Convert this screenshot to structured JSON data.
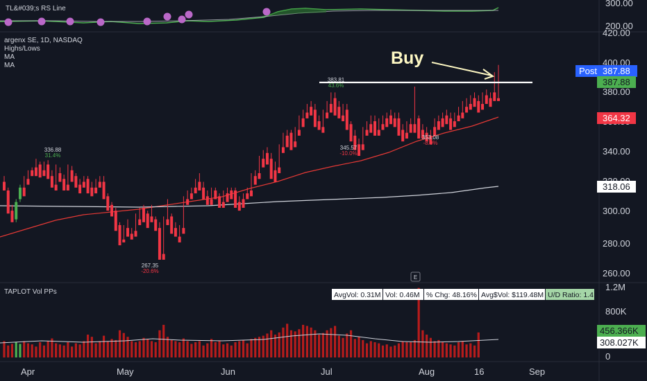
{
  "legend": {
    "rs_line": "TL&#039;s RS Line",
    "symbol": "argenx SE, 1D, NASDAQ",
    "highs_lows": "Highs/Lows",
    "ma1": "MA",
    "ma2": "MA",
    "vol": "TAPLOT Vol PPs"
  },
  "annotation": {
    "buy": "Buy"
  },
  "price_axis": {
    "ticks": [
      "420.00",
      "400.00",
      "380.00",
      "360.00",
      "340.00",
      "320.00",
      "300.00",
      "280.00",
      "260.00"
    ]
  },
  "rs_axis": {
    "ticks": [
      "300.00",
      "200.00"
    ]
  },
  "vol_axis": {
    "ticks": [
      "1.2M",
      "800K",
      "400K",
      "0"
    ]
  },
  "time_axis": {
    "ticks": [
      "Apr",
      "May",
      "Jun",
      "Jul",
      "Aug",
      "16",
      "Sep"
    ]
  },
  "badges": {
    "post_label": "Post",
    "post_value": "387.88",
    "last_value": "387.88",
    "ma_fast": "364.32",
    "ma_slow": "318.06",
    "vol_last": "456.366K",
    "vol_avg": "308.027K"
  },
  "markers": {
    "high1_value": "336.88",
    "high1_pct": "31.4%",
    "low1_value": "267.35",
    "low1_pct": "-20.6%",
    "high2_value": "383.81",
    "high2_pct": "43.6%",
    "low2_value": "345.57",
    "low2_pct": "-10.0%",
    "low3_value": "353.08",
    "low3_pct": "-8.0%",
    "e_badge": "E"
  },
  "stats": {
    "avgvol": "AvgVol: 0.31M",
    "vol": "Vol: 0.46M",
    "chg": "% Chg: 48.16%",
    "avgdollar": "Avg$Vol: $119.48M",
    "ud": "U/D Ratio: 1.4"
  },
  "colors": {
    "up": "#4caf50",
    "down": "#f23645",
    "ma_fast": "#e53935",
    "ma_slow": "#d1d4dc",
    "accent": "#2962ff"
  },
  "chart_data": {
    "type": "candlestick",
    "symbol": "argenx SE",
    "interval": "1D",
    "exchange": "NASDAQ",
    "ylim": [
      255,
      425
    ],
    "x_ticks": [
      "Apr",
      "May",
      "Jun",
      "Jul",
      "Aug",
      "16",
      "Sep"
    ],
    "candles": [
      [
        322,
        326,
        318,
        316
      ],
      [
        316,
        318,
        302,
        300
      ],
      [
        302,
        306,
        296,
        294
      ],
      [
        296,
        310,
        294,
        308
      ],
      [
        310,
        320,
        308,
        318
      ],
      [
        318,
        326,
        314,
        312
      ],
      [
        324,
        330,
        322,
        320
      ],
      [
        330,
        332,
        328,
        326
      ],
      [
        332,
        338,
        330,
        326
      ],
      [
        334,
        336,
        328,
        325
      ],
      [
        330,
        336,
        328,
        326
      ],
      [
        334,
        337,
        326,
        324
      ],
      [
        326,
        330,
        320,
        318
      ],
      [
        320,
        334,
        318,
        316
      ],
      [
        328,
        332,
        324,
        322
      ],
      [
        324,
        327,
        318,
        316
      ],
      [
        320,
        334,
        318,
        316
      ],
      [
        330,
        333,
        324,
        322
      ],
      [
        326,
        328,
        320,
        318
      ],
      [
        320,
        324,
        318,
        314
      ],
      [
        322,
        326,
        320,
        318
      ],
      [
        324,
        326,
        316,
        314
      ],
      [
        318,
        322,
        314,
        312
      ],
      [
        318,
        324,
        316,
        314
      ],
      [
        322,
        326,
        320,
        318
      ],
      [
        322,
        326,
        312,
        310
      ],
      [
        312,
        314,
        304,
        302
      ],
      [
        306,
        308,
        300,
        298
      ],
      [
        302,
        304,
        290,
        288
      ],
      [
        292,
        294,
        280,
        278
      ],
      [
        282,
        292,
        281,
        280
      ],
      [
        290,
        296,
        286,
        284
      ],
      [
        286,
        290,
        284,
        282
      ],
      [
        288,
        300,
        286,
        284
      ],
      [
        296,
        304,
        294,
        292
      ],
      [
        304,
        306,
        296,
        294
      ],
      [
        300,
        302,
        292,
        290
      ],
      [
        298,
        306,
        296,
        294
      ],
      [
        296,
        298,
        290,
        288
      ],
      [
        290,
        294,
        270,
        268
      ],
      [
        272,
        298,
        270,
        268
      ],
      [
        296,
        310,
        294,
        292
      ],
      [
        298,
        300,
        288,
        286
      ],
      [
        290,
        294,
        286,
        284
      ],
      [
        284,
        292,
        282,
        280
      ],
      [
        290,
        312,
        288,
        286
      ],
      [
        310,
        316,
        308,
        306
      ],
      [
        314,
        318,
        312,
        310
      ],
      [
        318,
        324,
        316,
        314
      ],
      [
        322,
        328,
        318,
        316
      ],
      [
        318,
        322,
        312,
        310
      ],
      [
        312,
        316,
        308,
        306
      ],
      [
        310,
        318,
        308,
        306
      ],
      [
        316,
        318,
        312,
        310
      ],
      [
        312,
        314,
        306,
        304
      ],
      [
        308,
        316,
        306,
        304
      ],
      [
        314,
        318,
        310,
        308
      ],
      [
        316,
        318,
        312,
        310
      ],
      [
        316,
        318,
        306,
        304
      ],
      [
        308,
        312,
        304,
        302
      ],
      [
        310,
        314,
        306,
        304
      ],
      [
        314,
        318,
        312,
        310
      ],
      [
        316,
        328,
        314,
        312
      ],
      [
        326,
        330,
        322,
        320
      ],
      [
        328,
        340,
        326,
        324
      ],
      [
        338,
        344,
        334,
        332
      ],
      [
        342,
        346,
        336,
        334
      ],
      [
        338,
        342,
        326,
        324
      ],
      [
        330,
        336,
        324,
        322
      ],
      [
        332,
        348,
        330,
        328
      ],
      [
        346,
        356,
        344,
        342
      ],
      [
        354,
        358,
        348,
        346
      ],
      [
        356,
        358,
        346,
        344
      ],
      [
        350,
        360,
        348,
        346
      ],
      [
        358,
        368,
        356,
        354
      ],
      [
        366,
        372,
        362,
        360
      ],
      [
        370,
        376,
        368,
        366
      ],
      [
        374,
        378,
        370,
        368
      ],
      [
        372,
        376,
        362,
        360
      ],
      [
        364,
        368,
        360,
        358
      ],
      [
        360,
        372,
        358,
        356
      ],
      [
        370,
        378,
        368,
        366
      ],
      [
        376,
        384,
        372,
        370
      ],
      [
        380,
        384,
        370,
        368
      ],
      [
        374,
        378,
        368,
        366
      ],
      [
        368,
        376,
        366,
        364
      ],
      [
        372,
        376,
        360,
        358
      ],
      [
        362,
        364,
        352,
        350
      ],
      [
        354,
        358,
        346,
        344
      ],
      [
        348,
        352,
        342,
        340
      ],
      [
        348,
        360,
        346,
        344
      ],
      [
        358,
        364,
        356,
        354
      ],
      [
        362,
        368,
        358,
        356
      ],
      [
        364,
        368,
        356,
        354
      ],
      [
        358,
        366,
        356,
        354
      ],
      [
        362,
        368,
        360,
        358
      ],
      [
        366,
        370,
        362,
        360
      ],
      [
        368,
        372,
        364,
        362
      ],
      [
        366,
        370,
        362,
        360
      ],
      [
        366,
        370,
        356,
        354
      ],
      [
        358,
        362,
        352,
        350
      ],
      [
        356,
        364,
        354,
        352
      ],
      [
        362,
        366,
        358,
        356
      ],
      [
        362,
        388,
        358,
        356
      ],
      [
        366,
        368,
        354,
        352
      ],
      [
        358,
        362,
        354,
        352
      ],
      [
        356,
        360,
        352,
        350
      ],
      [
        354,
        358,
        350,
        348
      ],
      [
        360,
        366,
        356,
        354
      ],
      [
        364,
        368,
        360,
        358
      ],
      [
        366,
        370,
        362,
        360
      ],
      [
        368,
        372,
        364,
        362
      ],
      [
        366,
        370,
        360,
        358
      ],
      [
        364,
        370,
        362,
        360
      ],
      [
        368,
        374,
        366,
        364
      ],
      [
        370,
        378,
        368,
        366
      ],
      [
        374,
        380,
        372,
        370
      ],
      [
        376,
        382,
        374,
        372
      ],
      [
        380,
        384,
        376,
        374
      ],
      [
        378,
        382,
        372,
        370
      ],
      [
        376,
        384,
        374,
        372
      ],
      [
        382,
        386,
        378,
        376
      ],
      [
        380,
        384,
        378,
        374
      ],
      [
        384,
        398,
        382,
        378
      ],
      [
        380,
        403,
        380,
        378
      ]
    ],
    "volume": [
      0.3,
      0.22,
      0.25,
      0.28,
      0.25,
      0.3,
      0.26,
      0.24,
      0.2,
      0.28,
      0.22,
      0.3,
      0.35,
      0.26,
      0.24,
      0.22,
      0.28,
      0.2,
      0.26,
      0.24,
      0.3,
      0.42,
      0.38,
      0.26,
      0.3,
      0.4,
      0.3,
      0.34,
      0.32,
      0.5,
      0.45,
      0.38,
      0.3,
      0.28,
      0.3,
      0.36,
      0.34,
      0.3,
      0.28,
      0.5,
      0.6,
      0.38,
      0.32,
      0.3,
      0.28,
      0.35,
      0.3,
      0.25,
      0.28,
      0.3,
      0.22,
      0.26,
      0.34,
      0.28,
      0.3,
      0.24,
      0.26,
      0.22,
      0.28,
      0.3,
      0.32,
      0.26,
      0.34,
      0.36,
      0.38,
      0.4,
      0.44,
      0.5,
      0.42,
      0.46,
      0.55,
      0.62,
      0.5,
      0.48,
      0.52,
      0.6,
      0.58,
      0.55,
      0.5,
      0.42,
      0.45,
      0.5,
      0.54,
      0.58,
      0.4,
      0.36,
      0.44,
      0.5,
      0.34,
      0.38,
      0.32,
      0.26,
      0.3,
      0.28,
      0.26,
      0.22,
      0.24,
      0.2,
      0.22,
      0.26,
      0.3,
      0.28,
      0.28,
      0.32,
      1.28,
      0.5,
      0.42,
      0.36,
      0.3,
      0.32,
      0.28,
      0.26,
      0.24,
      0.22,
      0.28,
      0.3,
      0.24,
      0.26,
      0.22,
      0.46
    ]
  }
}
